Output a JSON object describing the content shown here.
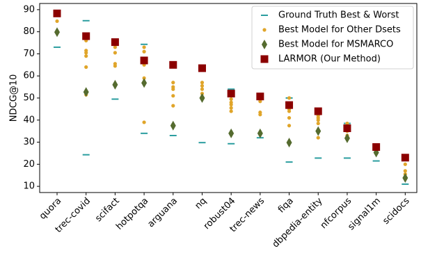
{
  "chart_data": {
    "type": "scatter",
    "ylabel": "NDCG@10",
    "categories": [
      "quora",
      "trec-covid",
      "scifact",
      "hotpotqa",
      "arguana",
      "nq",
      "robust04",
      "trec-news",
      "fiqa",
      "dbpedia-entity",
      "nfcorpus",
      "signal1m",
      "scidocs"
    ],
    "ylim": [
      7.2,
      92.8
    ],
    "yticks": [
      10,
      20,
      30,
      40,
      50,
      60,
      70,
      80,
      90
    ],
    "legend": "upper right",
    "series": [
      {
        "name": "Ground Truth Best & Worst",
        "color": "#2a9d9f",
        "marker": "hline",
        "values": [
          [
            88.5,
            73
          ],
          [
            85,
            24.3
          ],
          [
            75.5,
            49.5
          ],
          [
            74.3,
            34
          ],
          [
            65,
            33
          ],
          [
            63.5,
            29.8
          ],
          [
            54,
            29.3
          ],
          [
            51,
            32
          ],
          [
            50,
            21
          ],
          [
            44,
            22.8
          ],
          [
            38.5,
            22.8
          ],
          [
            29,
            21.5
          ],
          [
            23,
            11
          ]
        ]
      },
      {
        "name": "Best Model for Other Dsets",
        "color": "#e0a52a",
        "marker": "circle",
        "values": [
          [
            84.8,
            88
          ],
          [
            76,
            71.5,
            70.5,
            69,
            64,
            51.5
          ],
          [
            75,
            73,
            70.5,
            65.5,
            64.5
          ],
          [
            73,
            71,
            65,
            59,
            39
          ],
          [
            57,
            55,
            54,
            51,
            46.5
          ],
          [
            57,
            55.5,
            54,
            52
          ],
          [
            49.5,
            48,
            47,
            45.5,
            44
          ],
          [
            48.5,
            43.5,
            42.5,
            34
          ],
          [
            50,
            45,
            44,
            41,
            37.5
          ],
          [
            42,
            41,
            40,
            38.5,
            32
          ],
          [
            38.5,
            37.5,
            35,
            33
          ],
          [
            28,
            26.5,
            25
          ],
          [
            20,
            17,
            15.5
          ]
        ]
      },
      {
        "name": "Best Model for MSMARCO",
        "color": "#556b2f",
        "marker": "diamond",
        "values": [
          79.8,
          52.7,
          56,
          56.8,
          37.5,
          50,
          34,
          34,
          29.8,
          35,
          31.8,
          25.3,
          13.8
        ]
      },
      {
        "name": "LARMOR (Our Method)",
        "color": "#8b0000",
        "marker": "square",
        "values": [
          88.3,
          78,
          75.3,
          67,
          65,
          63.5,
          52,
          50.7,
          46.8,
          44,
          36.3,
          27.8,
          23
        ]
      }
    ]
  }
}
